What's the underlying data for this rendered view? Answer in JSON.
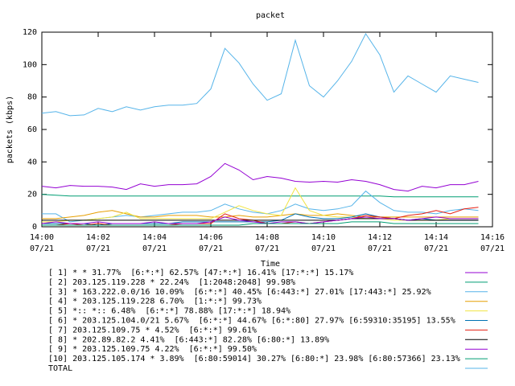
{
  "chart_data": {
    "type": "line",
    "title": "packet",
    "xlabel": "Time",
    "ylabel": "packets (kbps)",
    "x": [
      0,
      0.5,
      1,
      1.5,
      2,
      2.5,
      3,
      3.5,
      4,
      4.5,
      5,
      5.5,
      6,
      6.5,
      7,
      7.5,
      8,
      8.5,
      9,
      9.5,
      10,
      10.5,
      11,
      11.5,
      12,
      12.5,
      13,
      13.5,
      14,
      14.5,
      15,
      15.5
    ],
    "xlim": [
      0,
      16
    ],
    "xticks": [
      {
        "value": 0,
        "label": "14:00",
        "sublabel": "07/21"
      },
      {
        "value": 2,
        "label": "14:02",
        "sublabel": "07/21"
      },
      {
        "value": 4,
        "label": "14:04",
        "sublabel": "07/21"
      },
      {
        "value": 6,
        "label": "14:06",
        "sublabel": "07/21"
      },
      {
        "value": 8,
        "label": "14:08",
        "sublabel": "07/21"
      },
      {
        "value": 10,
        "label": "14:10",
        "sublabel": "07/21"
      },
      {
        "value": 12,
        "label": "14:12",
        "sublabel": "07/21"
      },
      {
        "value": 14,
        "label": "14:14",
        "sublabel": "07/21"
      },
      {
        "value": 16,
        "label": "14:16",
        "sublabel": "07/21"
      }
    ],
    "ylim": [
      0,
      120
    ],
    "yticks": [
      0,
      20,
      40,
      60,
      80,
      100,
      120
    ],
    "grid": false,
    "series": [
      {
        "name": "[ 1] * * 31.77%  [6:*:*] 62.57% [47:*:*] 16.41% [17:*:*] 15.17%",
        "color": "#9400d3",
        "values": [
          25,
          24,
          25.5,
          25,
          25,
          24.5,
          23,
          26.5,
          25,
          26,
          26,
          26.5,
          31,
          39,
          35,
          29,
          31,
          30,
          28,
          27.5,
          28,
          27.5,
          29,
          28,
          26,
          23,
          22,
          25,
          24,
          26,
          26,
          28
        ]
      },
      {
        "name": "[ 2] 203.125.119.228 * 22.24%  [1:2048:2048] 99.98%",
        "color": "#009e73",
        "values": [
          20,
          19.5,
          19,
          19,
          19,
          19,
          19,
          19,
          19,
          19,
          19,
          19,
          19,
          19,
          19,
          19,
          19,
          19,
          19,
          19,
          19,
          19,
          19,
          19,
          19,
          18.5,
          18.5,
          18.5,
          18.5,
          18.5,
          18.5,
          18.5
        ]
      },
      {
        "name": "[ 3] * 163.222.0.0/16 10.09%  [6:*:*] 40.45% [6:443:*] 27.01% [17:443:*] 25.92%",
        "color": "#56b4e9",
        "values": [
          8,
          8,
          3,
          4,
          5,
          6,
          7,
          6,
          7,
          8,
          9,
          9,
          10,
          14,
          11,
          9,
          8,
          10,
          14,
          11,
          10,
          11,
          13,
          22,
          15,
          10,
          9,
          9,
          8,
          10,
          11,
          10
        ]
      },
      {
        "name": "[ 4] * 203.125.119.228 6.70%  [1:*:*] 99.73%",
        "color": "#e69f00",
        "values": [
          5,
          5,
          6,
          7,
          9,
          10,
          8,
          6,
          6,
          7,
          7,
          7,
          6,
          6,
          7,
          6,
          6,
          7,
          8,
          7,
          7,
          8,
          7,
          6,
          6,
          6,
          6,
          6,
          6,
          6,
          6,
          6
        ]
      },
      {
        "name": "[ 5] *:: *:: 6.48%  [6:*:*] 78.88% [17:*:*] 18.94%",
        "color": "#f0e442",
        "values": [
          3,
          3,
          4,
          4,
          5,
          6,
          9,
          5,
          5,
          5,
          5,
          5,
          5,
          9,
          13,
          10,
          8,
          7,
          24,
          10,
          7,
          6,
          6,
          5,
          5,
          4,
          4,
          4,
          4,
          5,
          5,
          5
        ]
      },
      {
        "name": "[ 6] * 203.125.104.0/21 5.67%  [6:*:*] 44.67% [6:*:80] 27.97% [6:59310:35195] 13.55%",
        "color": "#0072b2",
        "values": [
          2,
          2,
          2,
          2,
          1,
          2,
          2,
          2,
          2,
          2,
          3,
          3,
          3,
          3,
          3,
          3,
          3,
          4,
          8,
          6,
          5,
          5,
          6,
          8,
          6,
          5,
          4,
          5,
          4,
          4,
          4,
          4
        ]
      },
      {
        "name": "[ 7] 203.125.109.75 * 4.52%  [6:*:*] 99.61%",
        "color": "#e51e10",
        "values": [
          1,
          1,
          2,
          1,
          2,
          1,
          1,
          1,
          1,
          1,
          2,
          2,
          2,
          8,
          5,
          4,
          2,
          2,
          3,
          2,
          3,
          4,
          5,
          7,
          6,
          5,
          7,
          8,
          10,
          8,
          11,
          12
        ]
      },
      {
        "name": "[ 8] * 202.89.82.2 4.41%  [6:443:*] 82.28% [6:80:*] 13.89%",
        "color": "#000000",
        "values": [
          4,
          4,
          4,
          4,
          4,
          4,
          4,
          4,
          4,
          4,
          4,
          4,
          4,
          4,
          4,
          4,
          4,
          4,
          4,
          4,
          4,
          4,
          5,
          5,
          5,
          5,
          4,
          4,
          4,
          4,
          4,
          4
        ]
      },
      {
        "name": "[ 9] * 203.125.109.75 4.22%  [6:*:*] 99.50%",
        "color": "#9400d3",
        "values": [
          2,
          3,
          2,
          2,
          3,
          2,
          2,
          2,
          3,
          2,
          2,
          2,
          3,
          6,
          4,
          3,
          2,
          3,
          3,
          2,
          3,
          4,
          5,
          6,
          5,
          5,
          4,
          5,
          6,
          5,
          5,
          5
        ]
      },
      {
        "name": "[10] 203.125.105.174 * 3.89%  [6:80:59014] 30.27% [6:80:*] 23.98% [6:80:57366] 23.13%",
        "color": "#009e73",
        "values": [
          1,
          1,
          1,
          1,
          1,
          1,
          1,
          1,
          1,
          1,
          1,
          1,
          1,
          1,
          1,
          2,
          2,
          2,
          2,
          2,
          2,
          2,
          3,
          3,
          3,
          2,
          2,
          2,
          2,
          2,
          2,
          2
        ]
      },
      {
        "name": "TOTAL",
        "color": "#56b4e9",
        "values": [
          70,
          71,
          68.5,
          69,
          73,
          71,
          74,
          72,
          74,
          75,
          75,
          76,
          85,
          110,
          101,
          88,
          78,
          82,
          115,
          87,
          80,
          90,
          102,
          119,
          106,
          83,
          93,
          88,
          83,
          93,
          91,
          89
        ]
      }
    ]
  }
}
